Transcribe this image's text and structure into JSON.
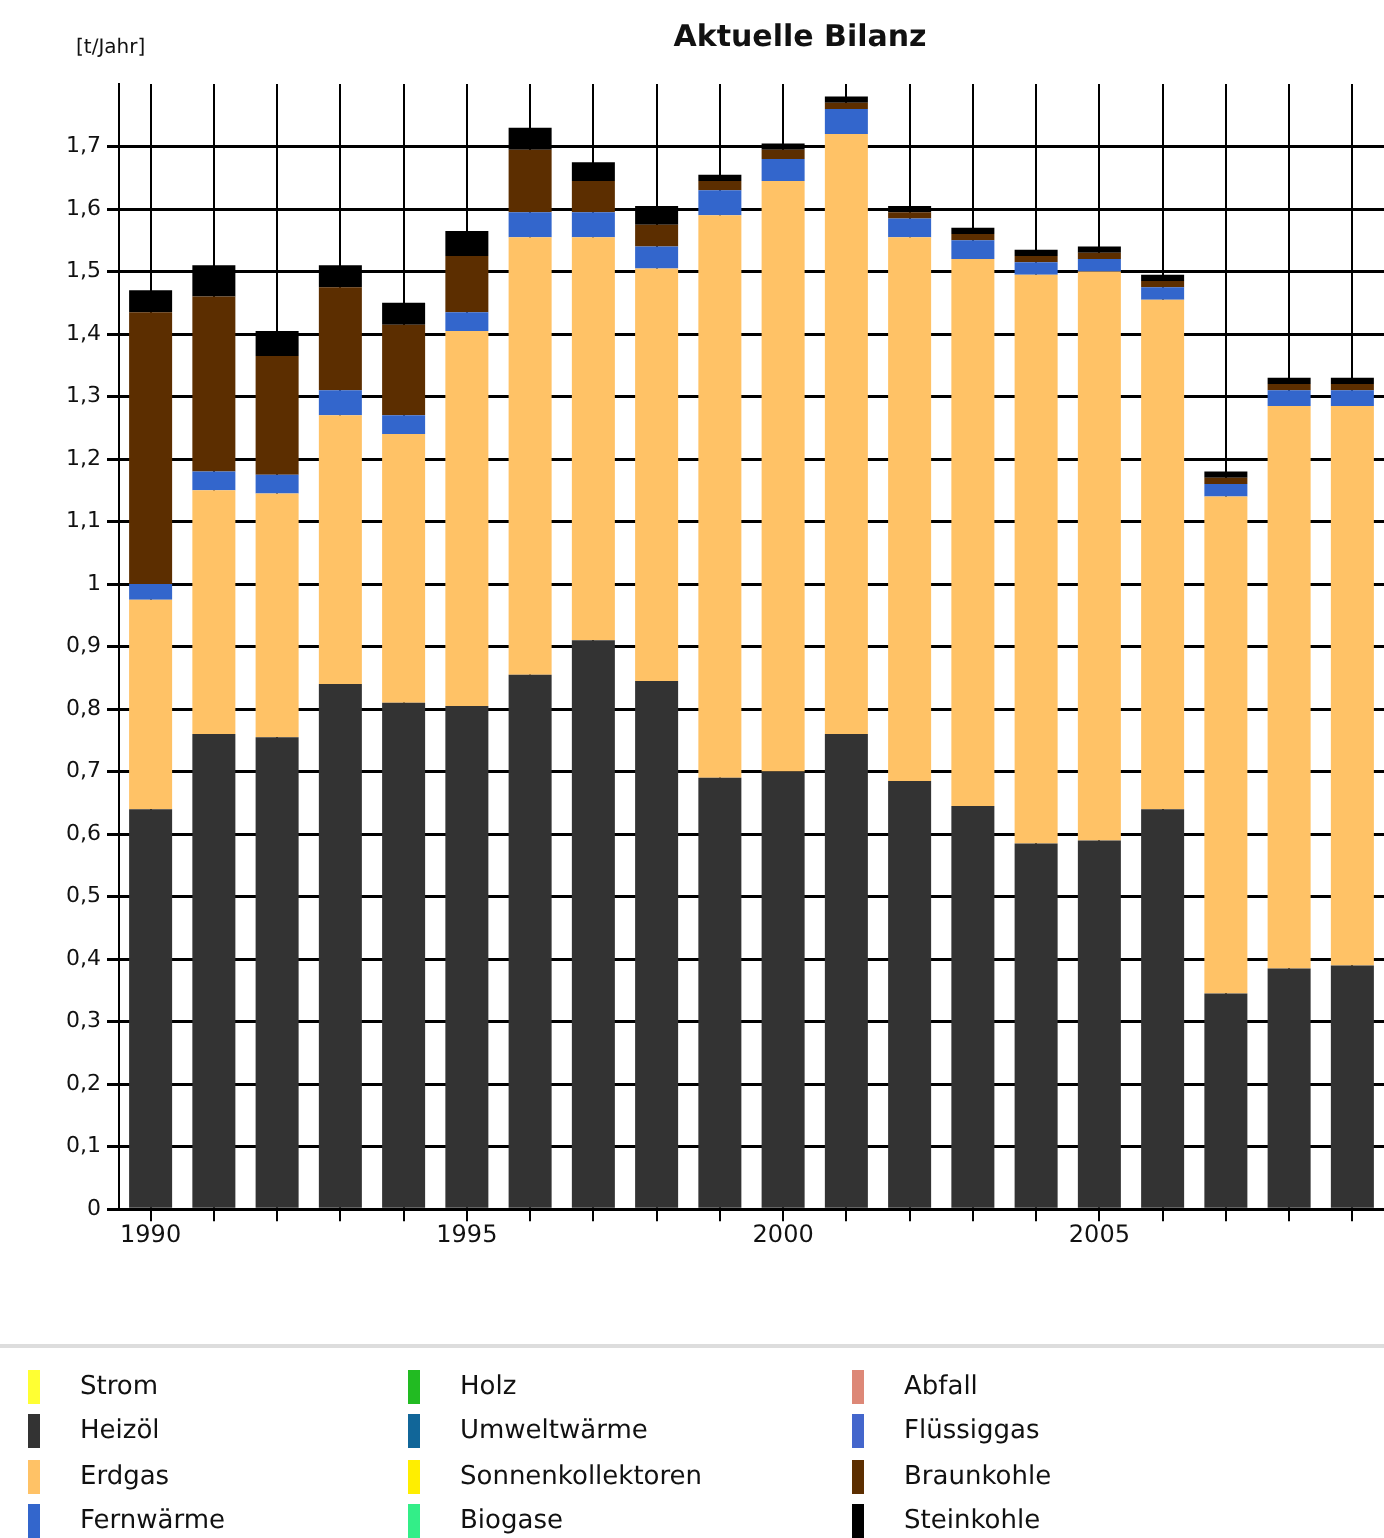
{
  "chart_data": {
    "type": "bar",
    "title": "Aktuelle Bilanz",
    "ylabel": "[t/Jahr]",
    "stacked": true,
    "grid": true,
    "legend": "bottom",
    "categories": [
      "1990",
      null,
      null,
      null,
      null,
      "1995",
      null,
      null,
      null,
      null,
      "2000",
      null,
      null,
      null,
      null,
      "2005",
      null,
      null,
      null,
      null
    ],
    "ylim": [
      0,
      1.8
    ],
    "yticks": [
      0,
      {
        "value": 0.1,
        "label": "0,1"
      },
      {
        "value": 0.2,
        "label": "0,2"
      },
      {
        "value": 0.3,
        "label": "0,3"
      },
      {
        "value": 0.4,
        "label": "0,4"
      },
      {
        "value": 0.5,
        "label": "0,5"
      },
      {
        "value": 0.6,
        "label": "0,6"
      },
      {
        "value": 0.7,
        "label": "0,7"
      },
      {
        "value": 0.8,
        "label": "0,8"
      },
      {
        "value": 0.9,
        "label": "0,9"
      },
      1,
      {
        "value": 1.1,
        "label": "1,1"
      },
      {
        "value": 1.2,
        "label": "1,2"
      },
      {
        "value": 1.3,
        "label": "1,3"
      },
      {
        "value": 1.4,
        "label": "1,4"
      },
      {
        "value": 1.5,
        "label": "1,5"
      },
      {
        "value": 1.6,
        "label": "1,6"
      },
      {
        "value": 1.7,
        "label": "1,7"
      }
    ],
    "series": [
      {
        "name": "Strom",
        "color": "#ffff33",
        "values": [
          0,
          0,
          0,
          0,
          0,
          0,
          0,
          0,
          0,
          0,
          0,
          0,
          0,
          0,
          0,
          0,
          0,
          0,
          0,
          0
        ]
      },
      {
        "name": "Heizöl",
        "color": "#333333",
        "values": [
          0.64,
          0.76,
          0.755,
          0.84,
          0.81,
          0.805,
          0.855,
          0.91,
          0.845,
          0.69,
          0.7,
          0.76,
          0.685,
          0.645,
          0.585,
          0.59,
          0.64,
          0.345,
          0.385,
          0.39
        ]
      },
      {
        "name": "Erdgas",
        "color": "#ffc266",
        "values": [
          0.335,
          0.39,
          0.39,
          0.43,
          0.43,
          0.6,
          0.7,
          0.645,
          0.66,
          0.9,
          0.945,
          0.96,
          0.87,
          0.875,
          0.91,
          0.91,
          0.815,
          0.795,
          0.9,
          0.895
        ]
      },
      {
        "name": "Fernwärme",
        "color": "#3366cc",
        "values": [
          0.025,
          0.03,
          0.03,
          0.04,
          0.03,
          0.03,
          0.04,
          0.04,
          0.035,
          0.04,
          0.035,
          0.04,
          0.03,
          0.03,
          0.02,
          0.02,
          0.02,
          0.02,
          0.025,
          0.025
        ]
      },
      {
        "name": "Holz",
        "color": "#22bb22",
        "values": [
          0,
          0,
          0,
          0,
          0,
          0,
          0,
          0,
          0,
          0,
          0,
          0,
          0,
          0,
          0,
          0,
          0,
          0,
          0,
          0
        ]
      },
      {
        "name": "Umweltwärme",
        "color": "#116699",
        "values": [
          0,
          0,
          0,
          0,
          0,
          0,
          0,
          0,
          0,
          0,
          0,
          0,
          0,
          0,
          0,
          0,
          0,
          0,
          0,
          0
        ]
      },
      {
        "name": "Sonnenkollektoren",
        "color": "#ffee00",
        "values": [
          0,
          0,
          0,
          0,
          0,
          0,
          0,
          0,
          0,
          0,
          0,
          0,
          0,
          0,
          0,
          0,
          0,
          0,
          0,
          0
        ]
      },
      {
        "name": "Biogase",
        "color": "#33ee88",
        "values": [
          0,
          0,
          0,
          0,
          0,
          0,
          0,
          0,
          0,
          0,
          0,
          0,
          0,
          0,
          0,
          0,
          0,
          0,
          0,
          0
        ]
      },
      {
        "name": "Abfall",
        "color": "#dd8877",
        "values": [
          0,
          0,
          0,
          0,
          0,
          0,
          0,
          0,
          0,
          0,
          0,
          0,
          0,
          0,
          0,
          0,
          0,
          0,
          0,
          0
        ]
      },
      {
        "name": "Flüssiggas",
        "color": "#4466cc",
        "values": [
          0,
          0,
          0,
          0,
          0,
          0,
          0,
          0,
          0,
          0,
          0,
          0,
          0,
          0,
          0,
          0,
          0,
          0,
          0,
          0
        ]
      },
      {
        "name": "Braunkohle",
        "color": "#5c2e00",
        "values": [
          0.435,
          0.28,
          0.19,
          0.165,
          0.145,
          0.09,
          0.1,
          0.05,
          0.035,
          0.015,
          0.015,
          0.01,
          0.01,
          0.01,
          0.01,
          0.01,
          0.01,
          0.01,
          0.01,
          0.01
        ]
      },
      {
        "name": "Steinkohle",
        "color": "#000000",
        "values": [
          0.035,
          0.05,
          0.04,
          0.035,
          0.035,
          0.04,
          0.035,
          0.03,
          0.03,
          0.01,
          0.01,
          0.01,
          0.01,
          0.01,
          0.01,
          0.01,
          0.01,
          0.01,
          0.01,
          0.01
        ]
      }
    ]
  }
}
